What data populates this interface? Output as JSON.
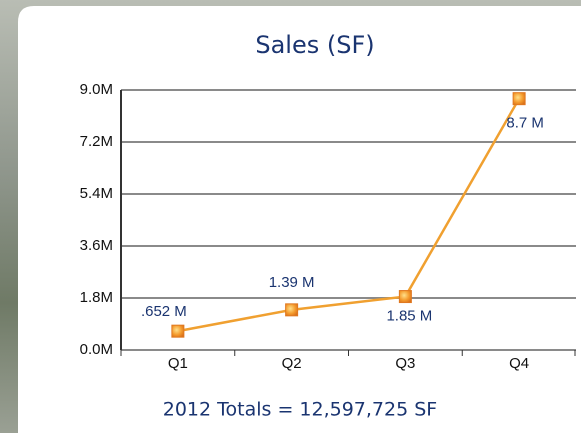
{
  "chart_data": {
    "type": "line",
    "title": "Sales (SF)",
    "categories": [
      "Q1",
      "Q2",
      "Q3",
      "Q4"
    ],
    "series": [
      {
        "name": "Sales (SF)",
        "color": "#f0a030",
        "values": [
          0.652,
          1.39,
          1.85,
          8.7
        ],
        "value_labels": [
          ".652 M",
          "1.39 M",
          "1.85 M",
          "8.7 M"
        ]
      }
    ],
    "ylim": [
      0,
      9
    ],
    "yticks": [
      {
        "value": 0,
        "label": "0.0M"
      },
      {
        "value": 1.8,
        "label": "1.8M"
      },
      {
        "value": 3.6,
        "label": "3.6M"
      },
      {
        "value": 5.4,
        "label": "5.4M"
      },
      {
        "value": 7.2,
        "label": "7.2M"
      },
      {
        "value": 9,
        "label": "9.0M"
      }
    ],
    "grid": true,
    "footer": "2012 Totals = 12,597,725 SF"
  }
}
